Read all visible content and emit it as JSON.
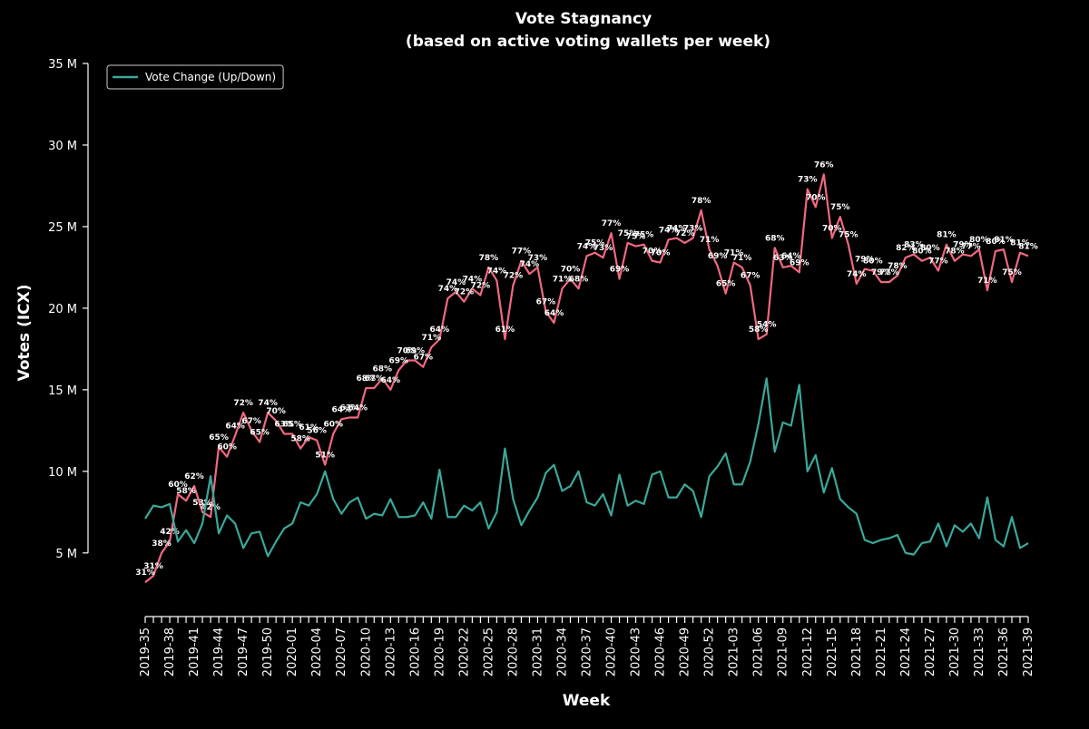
{
  "chart_data": {
    "type": "line",
    "title": "Vote Stagnancy",
    "subtitle": "(based on active voting wallets per week)",
    "x_label": "Week",
    "y_label": "Votes (ICX)",
    "legend": "upper left",
    "categories": [
      "2019-35",
      null,
      null,
      "2019-38",
      null,
      null,
      "2019-41",
      null,
      null,
      "2019-44",
      null,
      null,
      "2019-47",
      null,
      null,
      "2019-50",
      null,
      null,
      "2020-01",
      null,
      null,
      "2020-04",
      null,
      null,
      "2020-07",
      null,
      null,
      "2020-10",
      null,
      null,
      "2020-13",
      null,
      null,
      "2020-16",
      null,
      null,
      "2020-19",
      null,
      null,
      "2020-22",
      null,
      null,
      "2020-25",
      null,
      null,
      "2020-28",
      null,
      null,
      "2020-31",
      null,
      null,
      "2020-34",
      null,
      null,
      "2020-37",
      null,
      null,
      "2020-40",
      null,
      null,
      "2020-43",
      null,
      null,
      "2020-46",
      null,
      null,
      "2020-49",
      null,
      null,
      "2020-52",
      null,
      null,
      "2021-03",
      null,
      null,
      "2021-06",
      null,
      null,
      "2021-09",
      null,
      null,
      "2021-12",
      null,
      null,
      "2021-15",
      null,
      null,
      "2021-18",
      null,
      null,
      "2021-21",
      null,
      null,
      "2021-24",
      null,
      null,
      "2021-27",
      null,
      null,
      "2021-30",
      null,
      null,
      "2021-33",
      null,
      null,
      "2021-36",
      null,
      null,
      "2021-39"
    ],
    "ylim": [
      1.1,
      35
    ],
    "yticks": [
      {
        "value": 5,
        "label": "5 M"
      },
      {
        "value": 10,
        "label": "10 M"
      },
      {
        "value": 15,
        "label": "15 M"
      },
      {
        "value": 20,
        "label": "20 M"
      },
      {
        "value": 25,
        "label": "25 M"
      },
      {
        "value": 30,
        "label": "30 M"
      },
      {
        "value": 35,
        "label": "35 M"
      }
    ],
    "series": [
      {
        "color": "#f0697f",
        "values": [
          3.2,
          3.6,
          5.0,
          5.7,
          8.6,
          8.2,
          9.1,
          7.5,
          7.2,
          11.5,
          10.9,
          12.2,
          13.6,
          12.5,
          11.8,
          13.6,
          13.1,
          12.3,
          12.3,
          11.4,
          12.1,
          11.9,
          10.4,
          12.3,
          13.2,
          13.3,
          13.3,
          15.1,
          15.1,
          15.7,
          15.0,
          16.2,
          16.8,
          16.8,
          16.4,
          17.6,
          18.1,
          20.6,
          21.0,
          20.4,
          21.2,
          20.8,
          22.5,
          21.7,
          18.1,
          21.4,
          22.9,
          22.1,
          22.5,
          19.8,
          19.1,
          21.2,
          21.8,
          21.2,
          23.2,
          23.4,
          23.1,
          24.6,
          21.8,
          24.0,
          23.8,
          23.9,
          22.9,
          22.8,
          24.2,
          24.3,
          24.0,
          24.3,
          26.0,
          23.6,
          22.6,
          20.9,
          22.8,
          22.5,
          21.4,
          18.1,
          18.4,
          23.7,
          22.5,
          22.6,
          22.2,
          27.3,
          26.2,
          28.2,
          24.3,
          25.6,
          23.9,
          21.5,
          22.4,
          22.3,
          21.6,
          21.6,
          22.0,
          23.1,
          23.3,
          22.9,
          23.1,
          22.3,
          23.9,
          22.9,
          23.3,
          23.2,
          23.6,
          21.1,
          23.5,
          23.6,
          21.6,
          23.4,
          23.2
        ],
        "point_labels": [
          "31%",
          "31%",
          "38%",
          "42%",
          "60%",
          "58%",
          "62%",
          "53%",
          "42%",
          "65%",
          "60%",
          "64%",
          "72%",
          "67%",
          "65%",
          "74%",
          "70%",
          "63%",
          "65%",
          "58%",
          "61%",
          "56%",
          "51%",
          "60%",
          "64%",
          "63%",
          "64%",
          "68%",
          "67%",
          "68%",
          "64%",
          "69%",
          "70%",
          "69%",
          "67%",
          "71%",
          "64%",
          "74%",
          "74%",
          "72%",
          "74%",
          "72%",
          "78%",
          "74%",
          "61%",
          "72%",
          "77%",
          "74%",
          "73%",
          "67%",
          "64%",
          "71%",
          "70%",
          "68%",
          "74%",
          "75%",
          "73%",
          "77%",
          "69%",
          "75%",
          "75%",
          "75%",
          "70%",
          "70%",
          "74%",
          "74%",
          "72%",
          "73%",
          "78%",
          "71%",
          "69%",
          "65%",
          "71%",
          "71%",
          "67%",
          "58%",
          "54%",
          "68%",
          "63%",
          "64%",
          "69%",
          "73%",
          "70%",
          "76%",
          "70%",
          "75%",
          "75%",
          "74%",
          "79%",
          "80%",
          "79%",
          "77%",
          "78%",
          "82%",
          "83%",
          "80%",
          "80%",
          "77%",
          "81%",
          "78%",
          "79%",
          "77%",
          "80%",
          "71%",
          "80%",
          "81%",
          "75%",
          "81%",
          "81%"
        ]
      },
      {
        "name": "Vote Change (Up/Down)",
        "color": "#3aa89a",
        "values": [
          7.1,
          7.9,
          7.8,
          8.0,
          5.7,
          6.4,
          5.6,
          6.8,
          9.7,
          6.2,
          7.3,
          6.8,
          5.3,
          6.2,
          6.3,
          4.8,
          5.7,
          6.5,
          6.8,
          8.1,
          7.9,
          8.6,
          10.0,
          8.3,
          7.4,
          8.1,
          8.4,
          7.1,
          7.4,
          7.3,
          8.3,
          7.2,
          7.2,
          7.3,
          8.1,
          7.1,
          10.1,
          7.2,
          7.2,
          7.9,
          7.6,
          8.1,
          6.5,
          7.5,
          11.4,
          8.3,
          6.7,
          7.6,
          8.4,
          9.9,
          10.4,
          8.8,
          9.1,
          10.0,
          8.1,
          7.9,
          8.6,
          7.3,
          9.8,
          7.9,
          8.2,
          8.0,
          9.8,
          10.0,
          8.4,
          8.4,
          9.2,
          8.8,
          7.2,
          9.7,
          10.3,
          11.1,
          9.2,
          9.2,
          10.6,
          12.9,
          15.7,
          11.2,
          13.0,
          12.8,
          15.3,
          10.0,
          11.0,
          8.7,
          10.2,
          8.3,
          7.8,
          7.4,
          5.8,
          5.6,
          5.8,
          5.9,
          6.1,
          5.0,
          4.9,
          5.6,
          5.7,
          6.8,
          5.4,
          6.7,
          6.3,
          6.8,
          5.9,
          8.4,
          5.8,
          5.4,
          7.2,
          5.3,
          5.6
        ]
      }
    ]
  }
}
